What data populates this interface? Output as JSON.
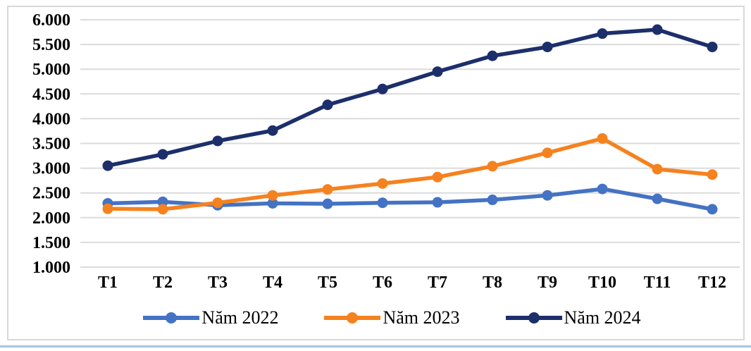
{
  "chart_data": {
    "type": "line",
    "title": "",
    "xlabel": "",
    "ylabel": "",
    "categories": [
      "T1",
      "T2",
      "T3",
      "T4",
      "T5",
      "T6",
      "T7",
      "T8",
      "T9",
      "T10",
      "T11",
      "T12"
    ],
    "series": [
      {
        "name": "Năm 2022",
        "color": "#4472C4",
        "values": [
          2290,
          2320,
          2250,
          2290,
          2280,
          2300,
          2310,
          2360,
          2450,
          2580,
          2380,
          2170
        ]
      },
      {
        "name": "Năm 2023",
        "color": "#F5821F",
        "values": [
          2180,
          2170,
          2300,
          2450,
          2570,
          2690,
          2820,
          3040,
          3310,
          3600,
          2980,
          2870
        ]
      },
      {
        "name": "Năm 2024",
        "color": "#1C2F6B",
        "values": [
          3050,
          3280,
          3550,
          3760,
          4280,
          4600,
          4950,
          5270,
          5450,
          5720,
          5800,
          5450
        ]
      }
    ],
    "ylim": [
      1000,
      6000
    ],
    "ytick_values": [
      1000,
      1500,
      2000,
      2500,
      3000,
      3500,
      4000,
      4500,
      5000,
      5500,
      6000
    ],
    "ytick_labels": [
      "1.000",
      "1.500",
      "2.000",
      "2.500",
      "3.000",
      "3.500",
      "4.000",
      "4.500",
      "5.000",
      "5.500",
      "6.000"
    ],
    "grid": true,
    "legend_position": "bottom"
  },
  "colors": {
    "gridline": "#DBDBDB",
    "frame_border": "#D8D8D8",
    "outer_border": "#A9C3E3",
    "text": "#000000"
  }
}
